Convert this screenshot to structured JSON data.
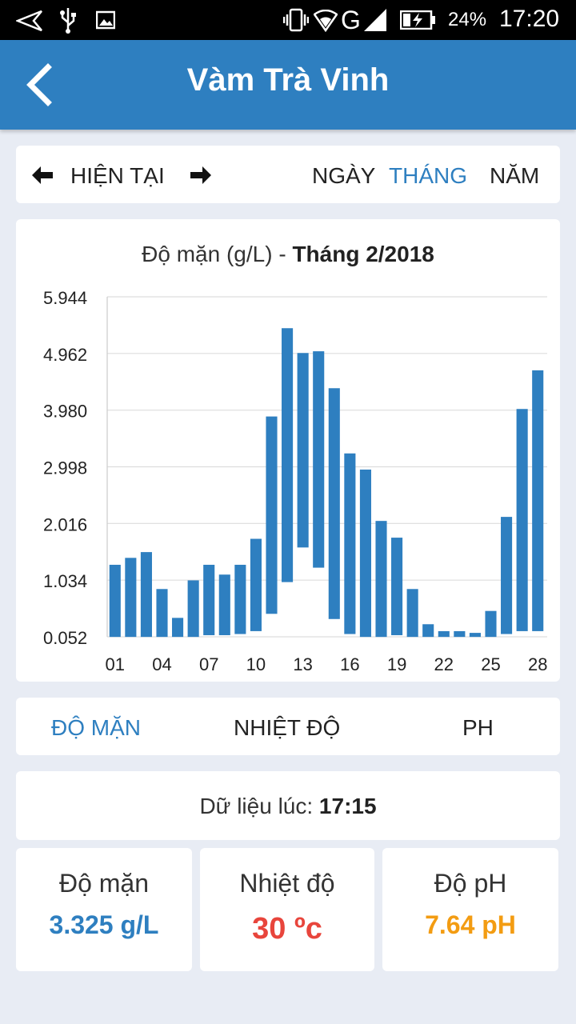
{
  "status_bar": {
    "battery_percent": "24%",
    "time": "17:20",
    "network": "G",
    "icons": [
      "share-icon",
      "usb-icon",
      "image-icon",
      "vibrate-icon",
      "wifi-icon",
      "signal-icon",
      "battery-charging-icon"
    ]
  },
  "app_bar": {
    "title": "Vàm Trà Vinh",
    "back_icon": "back-chevron-icon"
  },
  "period_nav": {
    "prev_icon": "arrow-left-icon",
    "label": "HIỆN TẠI",
    "next_icon": "arrow-right-icon",
    "ranges": [
      {
        "label": "NGÀY",
        "active": false
      },
      {
        "label": "THÁNG",
        "active": true
      },
      {
        "label": "NĂM",
        "active": false
      }
    ]
  },
  "chart_title": {
    "metric": "Độ mặn (g/L) - ",
    "period": "Tháng 2/2018"
  },
  "chart_data": {
    "type": "bar",
    "subtype": "floating-range",
    "title": "Độ mặn (g/L) - Tháng 2/2018",
    "xlabel": "",
    "ylabel": "",
    "ylim": [
      0.052,
      5.944
    ],
    "y_ticks": [
      "5.944",
      "4.962",
      "3.980",
      "2.998",
      "2.016",
      "1.034",
      "0.052"
    ],
    "x_tick_labels": [
      "01",
      "04",
      "07",
      "10",
      "13",
      "16",
      "19",
      "22",
      "25",
      "28"
    ],
    "grid": true,
    "categories": [
      "01",
      "02",
      "03",
      "04",
      "05",
      "06",
      "07",
      "08",
      "09",
      "10",
      "11",
      "12",
      "13",
      "14",
      "15",
      "16",
      "17",
      "18",
      "19",
      "20",
      "21",
      "22",
      "23",
      "24",
      "25",
      "26",
      "27",
      "28"
    ],
    "low": [
      0.05,
      0.05,
      0.05,
      0.05,
      0.05,
      0.05,
      0.08,
      0.08,
      0.1,
      0.15,
      0.45,
      1.0,
      1.6,
      1.25,
      0.36,
      0.1,
      0.05,
      0.05,
      0.08,
      0.05,
      0.05,
      0.05,
      0.05,
      0.05,
      0.05,
      0.1,
      0.15,
      0.15
    ],
    "high": [
      1.3,
      1.42,
      1.52,
      0.88,
      0.38,
      1.03,
      1.3,
      1.13,
      1.3,
      1.75,
      3.87,
      5.4,
      4.97,
      5.0,
      4.36,
      3.23,
      2.95,
      2.06,
      1.77,
      0.88,
      0.27,
      0.15,
      0.15,
      0.12,
      0.5,
      2.13,
      4.0,
      4.67
    ],
    "bar_color": "#2e7fc0"
  },
  "metric_tabs": [
    {
      "label": "ĐỘ MẶN",
      "active": true
    },
    {
      "label": "NHIỆT ĐỘ",
      "active": false
    },
    {
      "label": "PH",
      "active": false
    }
  ],
  "updated": {
    "label": "Dữ liệu lúc: ",
    "time": "17:15"
  },
  "stats": [
    {
      "label": "Độ mặn",
      "value": "3.325 g/L",
      "color": "#2e7fc0"
    },
    {
      "label": "Nhiệt độ",
      "value": "30 ºc",
      "color": "#e8453c"
    },
    {
      "label": "Độ pH",
      "value": "7.64 pH",
      "color": "#f39c12"
    }
  ],
  "colors": {
    "primary": "#2e7fc0",
    "background": "#e8ecf4"
  }
}
